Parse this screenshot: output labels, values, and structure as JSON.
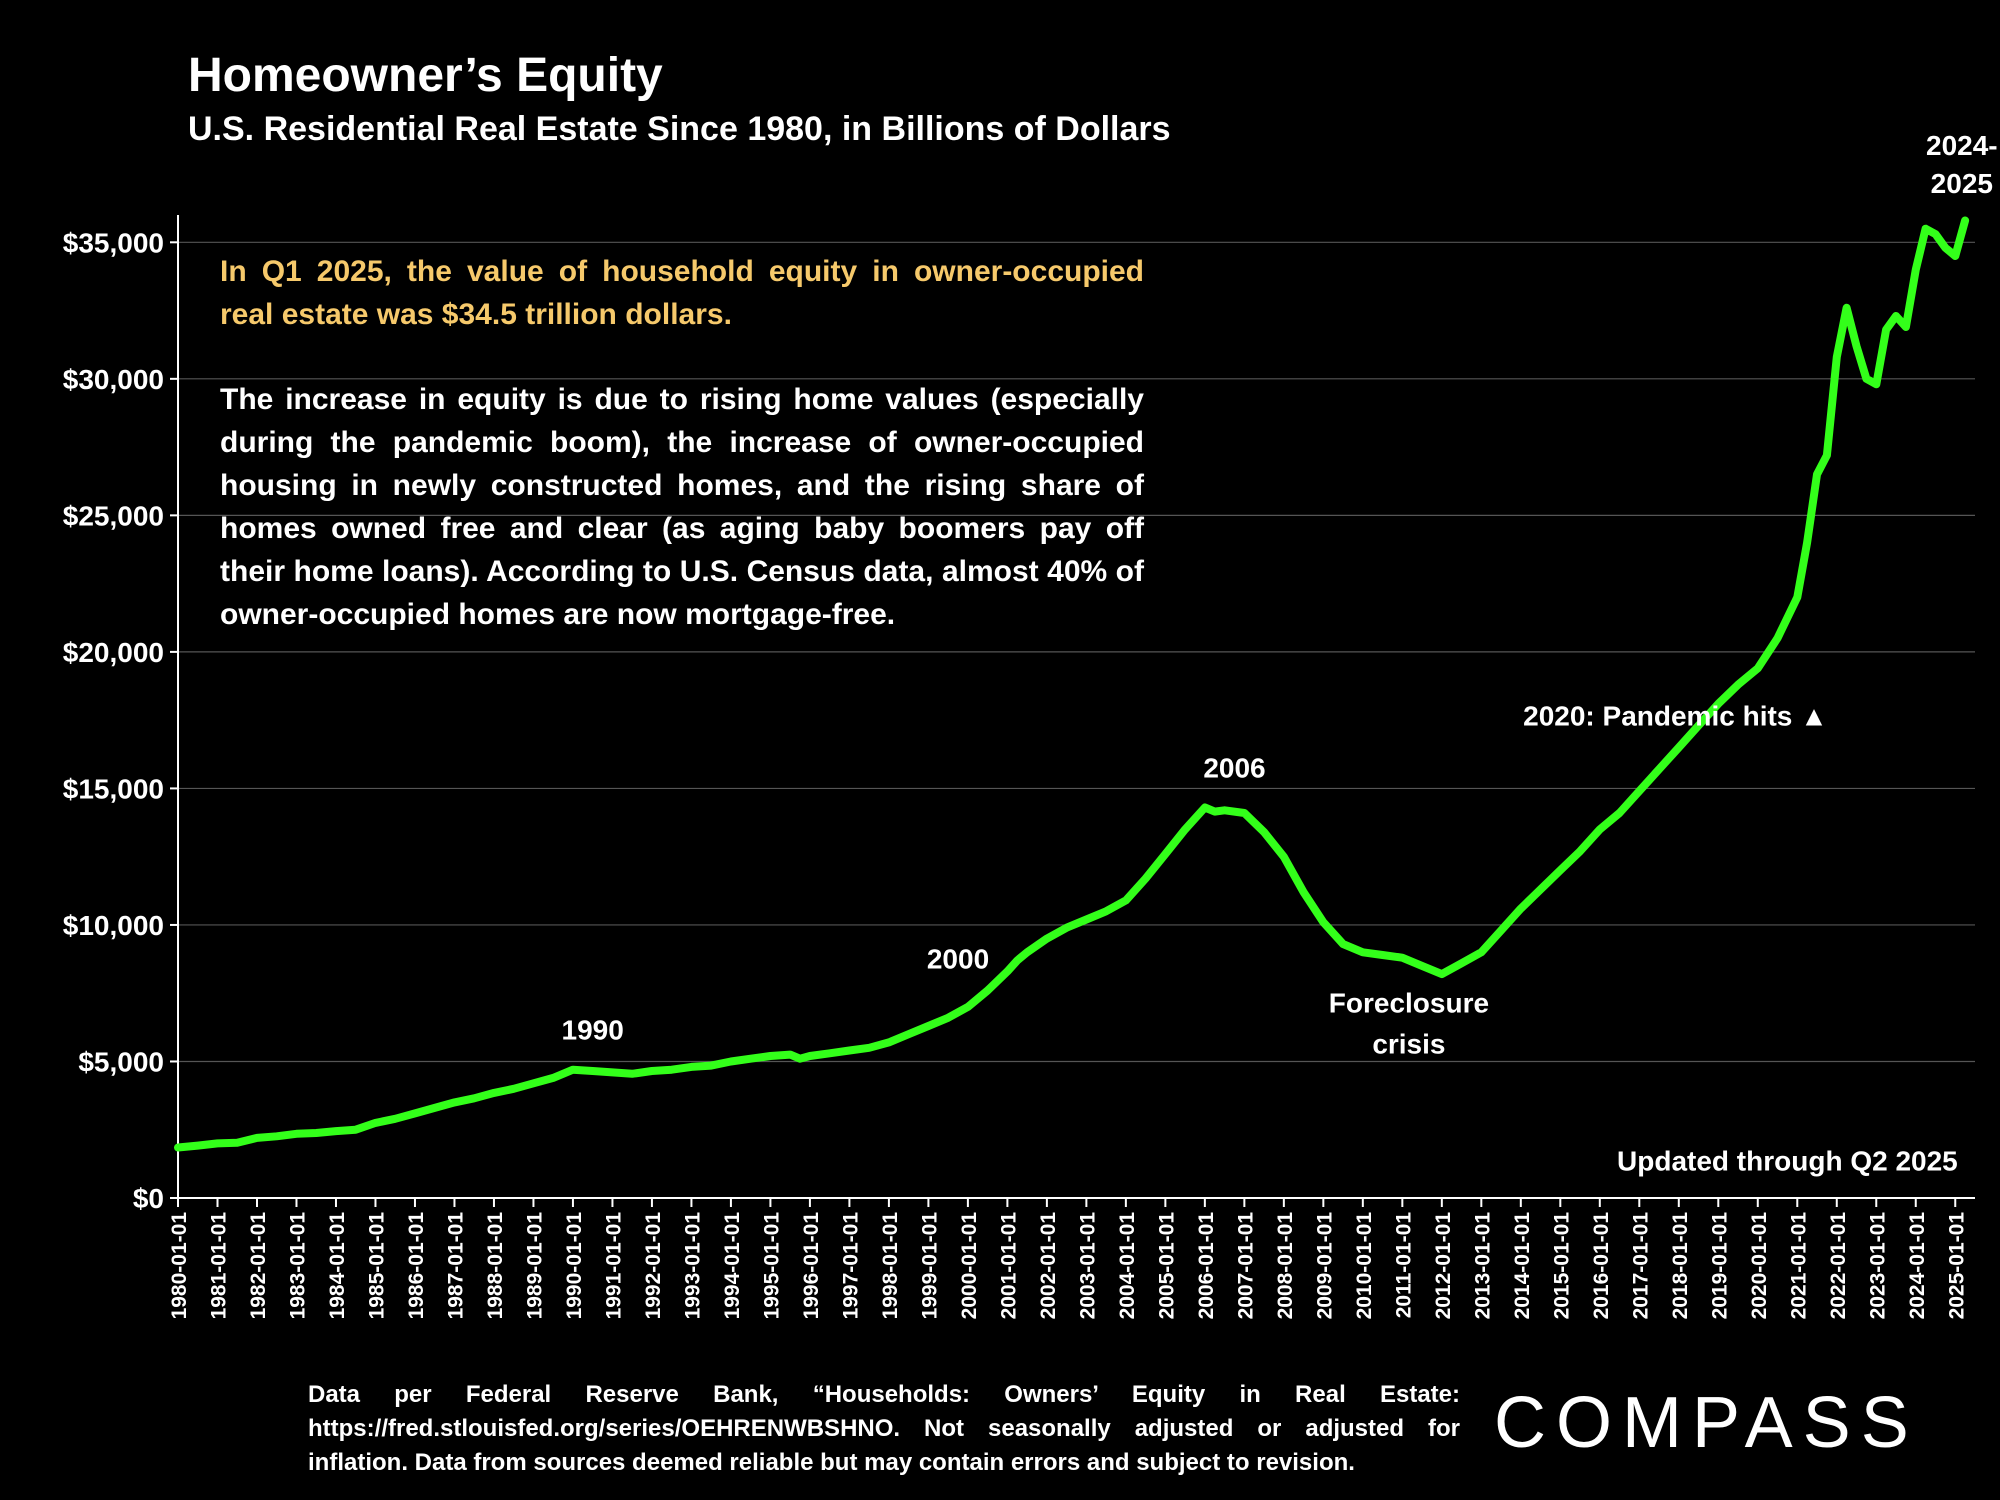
{
  "header": {
    "title": "Homeowner’s Equity",
    "subtitle": "U.S. Residential Real Estate Since 1980, in Billions of Dollars"
  },
  "annotation": {
    "highlight": "In Q1 2025, the value of household equity in owner-occupied real estate was $34.5 trillion dollars.",
    "body": "The increase in equity is due to rising home values (especially during the pandemic boom), the increase of owner-occupied housing in newly constructed homes, and the rising share of homes owned free and clear (as aging baby boomers pay off their home loans). According to U.S. Census data, almost 40% of owner-occupied homes are now mortgage-free."
  },
  "footer": {
    "source": "Data per Federal Reserve Bank, “Households: Owners’ Equity in Real Estate: https://fred.stlouisfed.org/series/OEHRENWBSHNO. Not seasonally adjusted or adjusted for inflation. Data from sources deemed reliable but may contain errors and subject to revision."
  },
  "brand": {
    "logo": "COMPASS"
  },
  "colors": {
    "background": "#000000",
    "line": "#33ff1a",
    "highlight_text": "#f6c96b",
    "grid": "#555555"
  },
  "chart_data": {
    "type": "line",
    "title": "Homeowner’s Equity",
    "subtitle": "U.S. Residential Real Estate Since 1980, in Billions of Dollars",
    "ylim": [
      0,
      36000
    ],
    "xlim": [
      1980.0,
      2025.5
    ],
    "grid": "horizontal",
    "y_ticks": [
      {
        "value": 0,
        "label": "$0"
      },
      {
        "value": 5000,
        "label": "$5,000"
      },
      {
        "value": 10000,
        "label": "$10,000"
      },
      {
        "value": 15000,
        "label": "$15,000"
      },
      {
        "value": 20000,
        "label": "$20,000"
      },
      {
        "value": 25000,
        "label": "$25,000"
      },
      {
        "value": 30000,
        "label": "$30,000"
      },
      {
        "value": 35000,
        "label": "$35,000"
      }
    ],
    "x_ticks": [
      "1980-01-01",
      "1981-01-01",
      "1982-01-01",
      "1983-01-01",
      "1984-01-01",
      "1985-01-01",
      "1986-01-01",
      "1987-01-01",
      "1988-01-01",
      "1989-01-01",
      "1990-01-01",
      "1991-01-01",
      "1992-01-01",
      "1993-01-01",
      "1994-01-01",
      "1995-01-01",
      "1996-01-01",
      "1997-01-01",
      "1998-01-01",
      "1999-01-01",
      "2000-01-01",
      "2001-01-01",
      "2002-01-01",
      "2003-01-01",
      "2004-01-01",
      "2005-01-01",
      "2006-01-01",
      "2007-01-01",
      "2008-01-01",
      "2009-01-01",
      "2010-01-01",
      "2011-01-01",
      "2012-01-01",
      "2013-01-01",
      "2014-01-01",
      "2015-01-01",
      "2016-01-01",
      "2017-01-01",
      "2018-01-01",
      "2019-01-01",
      "2020-01-01",
      "2021-01-01",
      "2022-01-01",
      "2023-01-01",
      "2024-01-01",
      "2025-01-01"
    ],
    "series": [
      {
        "name": "",
        "points": [
          [
            "1980-01-01",
            1850
          ],
          [
            "1980-07-01",
            1920
          ],
          [
            "1981-01-01",
            2000
          ],
          [
            "1981-07-01",
            2020
          ],
          [
            "1982-01-01",
            2200
          ],
          [
            "1982-07-01",
            2260
          ],
          [
            "1983-01-01",
            2350
          ],
          [
            "1983-07-01",
            2380
          ],
          [
            "1984-01-01",
            2450
          ],
          [
            "1984-07-01",
            2500
          ],
          [
            "1985-01-01",
            2750
          ],
          [
            "1985-07-01",
            2900
          ],
          [
            "1986-01-01",
            3100
          ],
          [
            "1986-07-01",
            3300
          ],
          [
            "1987-01-01",
            3500
          ],
          [
            "1987-07-01",
            3650
          ],
          [
            "1988-01-01",
            3850
          ],
          [
            "1988-07-01",
            4000
          ],
          [
            "1989-01-01",
            4200
          ],
          [
            "1989-07-01",
            4400
          ],
          [
            "1990-01-01",
            4700
          ],
          [
            "1990-07-01",
            4650
          ],
          [
            "1991-01-01",
            4600
          ],
          [
            "1991-07-01",
            4550
          ],
          [
            "1992-01-01",
            4650
          ],
          [
            "1992-07-01",
            4700
          ],
          [
            "1993-01-01",
            4800
          ],
          [
            "1993-07-01",
            4850
          ],
          [
            "1994-01-01",
            5000
          ],
          [
            "1994-07-01",
            5100
          ],
          [
            "1995-01-01",
            5200
          ],
          [
            "1995-07-01",
            5250
          ],
          [
            "1995-10-01",
            5100
          ],
          [
            "1996-01-01",
            5200
          ],
          [
            "1996-07-01",
            5300
          ],
          [
            "1997-01-01",
            5400
          ],
          [
            "1997-07-01",
            5500
          ],
          [
            "1998-01-01",
            5700
          ],
          [
            "1998-07-01",
            6000
          ],
          [
            "1999-01-01",
            6300
          ],
          [
            "1999-07-01",
            6600
          ],
          [
            "2000-01-01",
            7000
          ],
          [
            "2000-07-01",
            7600
          ],
          [
            "2001-01-01",
            8300
          ],
          [
            "2001-04-01",
            8700
          ],
          [
            "2001-07-01",
            9000
          ],
          [
            "2002-01-01",
            9500
          ],
          [
            "2002-07-01",
            9900
          ],
          [
            "2003-01-01",
            10200
          ],
          [
            "2003-07-01",
            10500
          ],
          [
            "2004-01-01",
            10900
          ],
          [
            "2004-07-01",
            11700
          ],
          [
            "2005-01-01",
            12600
          ],
          [
            "2005-07-01",
            13500
          ],
          [
            "2006-01-01",
            14300
          ],
          [
            "2006-04-01",
            14150
          ],
          [
            "2006-07-01",
            14200
          ],
          [
            "2007-01-01",
            14100
          ],
          [
            "2007-07-01",
            13400
          ],
          [
            "2008-01-01",
            12500
          ],
          [
            "2008-07-01",
            11200
          ],
          [
            "2009-01-01",
            10100
          ],
          [
            "2009-07-01",
            9300
          ],
          [
            "2010-01-01",
            9000
          ],
          [
            "2010-07-01",
            8900
          ],
          [
            "2011-01-01",
            8800
          ],
          [
            "2011-07-01",
            8500
          ],
          [
            "2012-01-01",
            8200
          ],
          [
            "2012-07-01",
            8600
          ],
          [
            "2013-01-01",
            9000
          ],
          [
            "2013-07-01",
            9800
          ],
          [
            "2014-01-01",
            10600
          ],
          [
            "2014-07-01",
            11300
          ],
          [
            "2015-01-01",
            12000
          ],
          [
            "2015-07-01",
            12700
          ],
          [
            "2016-01-01",
            13500
          ],
          [
            "2016-07-01",
            14100
          ],
          [
            "2017-01-01",
            14900
          ],
          [
            "2017-07-01",
            15700
          ],
          [
            "2018-01-01",
            16500
          ],
          [
            "2018-07-01",
            17300
          ],
          [
            "2019-01-01",
            18100
          ],
          [
            "2019-07-01",
            18800
          ],
          [
            "2020-01-01",
            19400
          ],
          [
            "2020-07-01",
            20500
          ],
          [
            "2021-01-01",
            22000
          ],
          [
            "2021-04-01",
            24000
          ],
          [
            "2021-07-01",
            26500
          ],
          [
            "2021-10-01",
            27200
          ],
          [
            "2022-01-01",
            30800
          ],
          [
            "2022-04-01",
            32600
          ],
          [
            "2022-07-01",
            31200
          ],
          [
            "2022-10-01",
            30000
          ],
          [
            "2023-01-01",
            29800
          ],
          [
            "2023-04-01",
            31800
          ],
          [
            "2023-07-01",
            32300
          ],
          [
            "2023-10-01",
            31900
          ],
          [
            "2024-01-01",
            34000
          ],
          [
            "2024-04-01",
            35500
          ],
          [
            "2024-07-01",
            35300
          ],
          [
            "2024-10-01",
            34800
          ],
          [
            "2025-01-01",
            34500
          ],
          [
            "2025-04-01",
            35800
          ]
        ]
      }
    ],
    "annotations": [
      {
        "label": "1990",
        "x": "1990-07-01",
        "y": 5800
      },
      {
        "label": "2000",
        "x": "1999-10-01",
        "y": 8400
      },
      {
        "label": "2006",
        "x": "2006-10-01",
        "y": 15400
      },
      {
        "label": "Foreclosure",
        "x": "2011-03-01",
        "y": 6800
      },
      {
        "label": "crisis",
        "x": "2011-03-01",
        "y": 5300
      },
      {
        "label": "2020:  Pandemic hits ▲",
        "x": "2017-12-01",
        "y": 17300
      },
      {
        "label": "2024-",
        "x": "2025-03-01",
        "y": 38200
      },
      {
        "label": "2025",
        "x": "2025-03-01",
        "y": 36800
      },
      {
        "label": "Updated through Q2 2025",
        "x": "2020-10-01",
        "y": 1000
      }
    ]
  }
}
